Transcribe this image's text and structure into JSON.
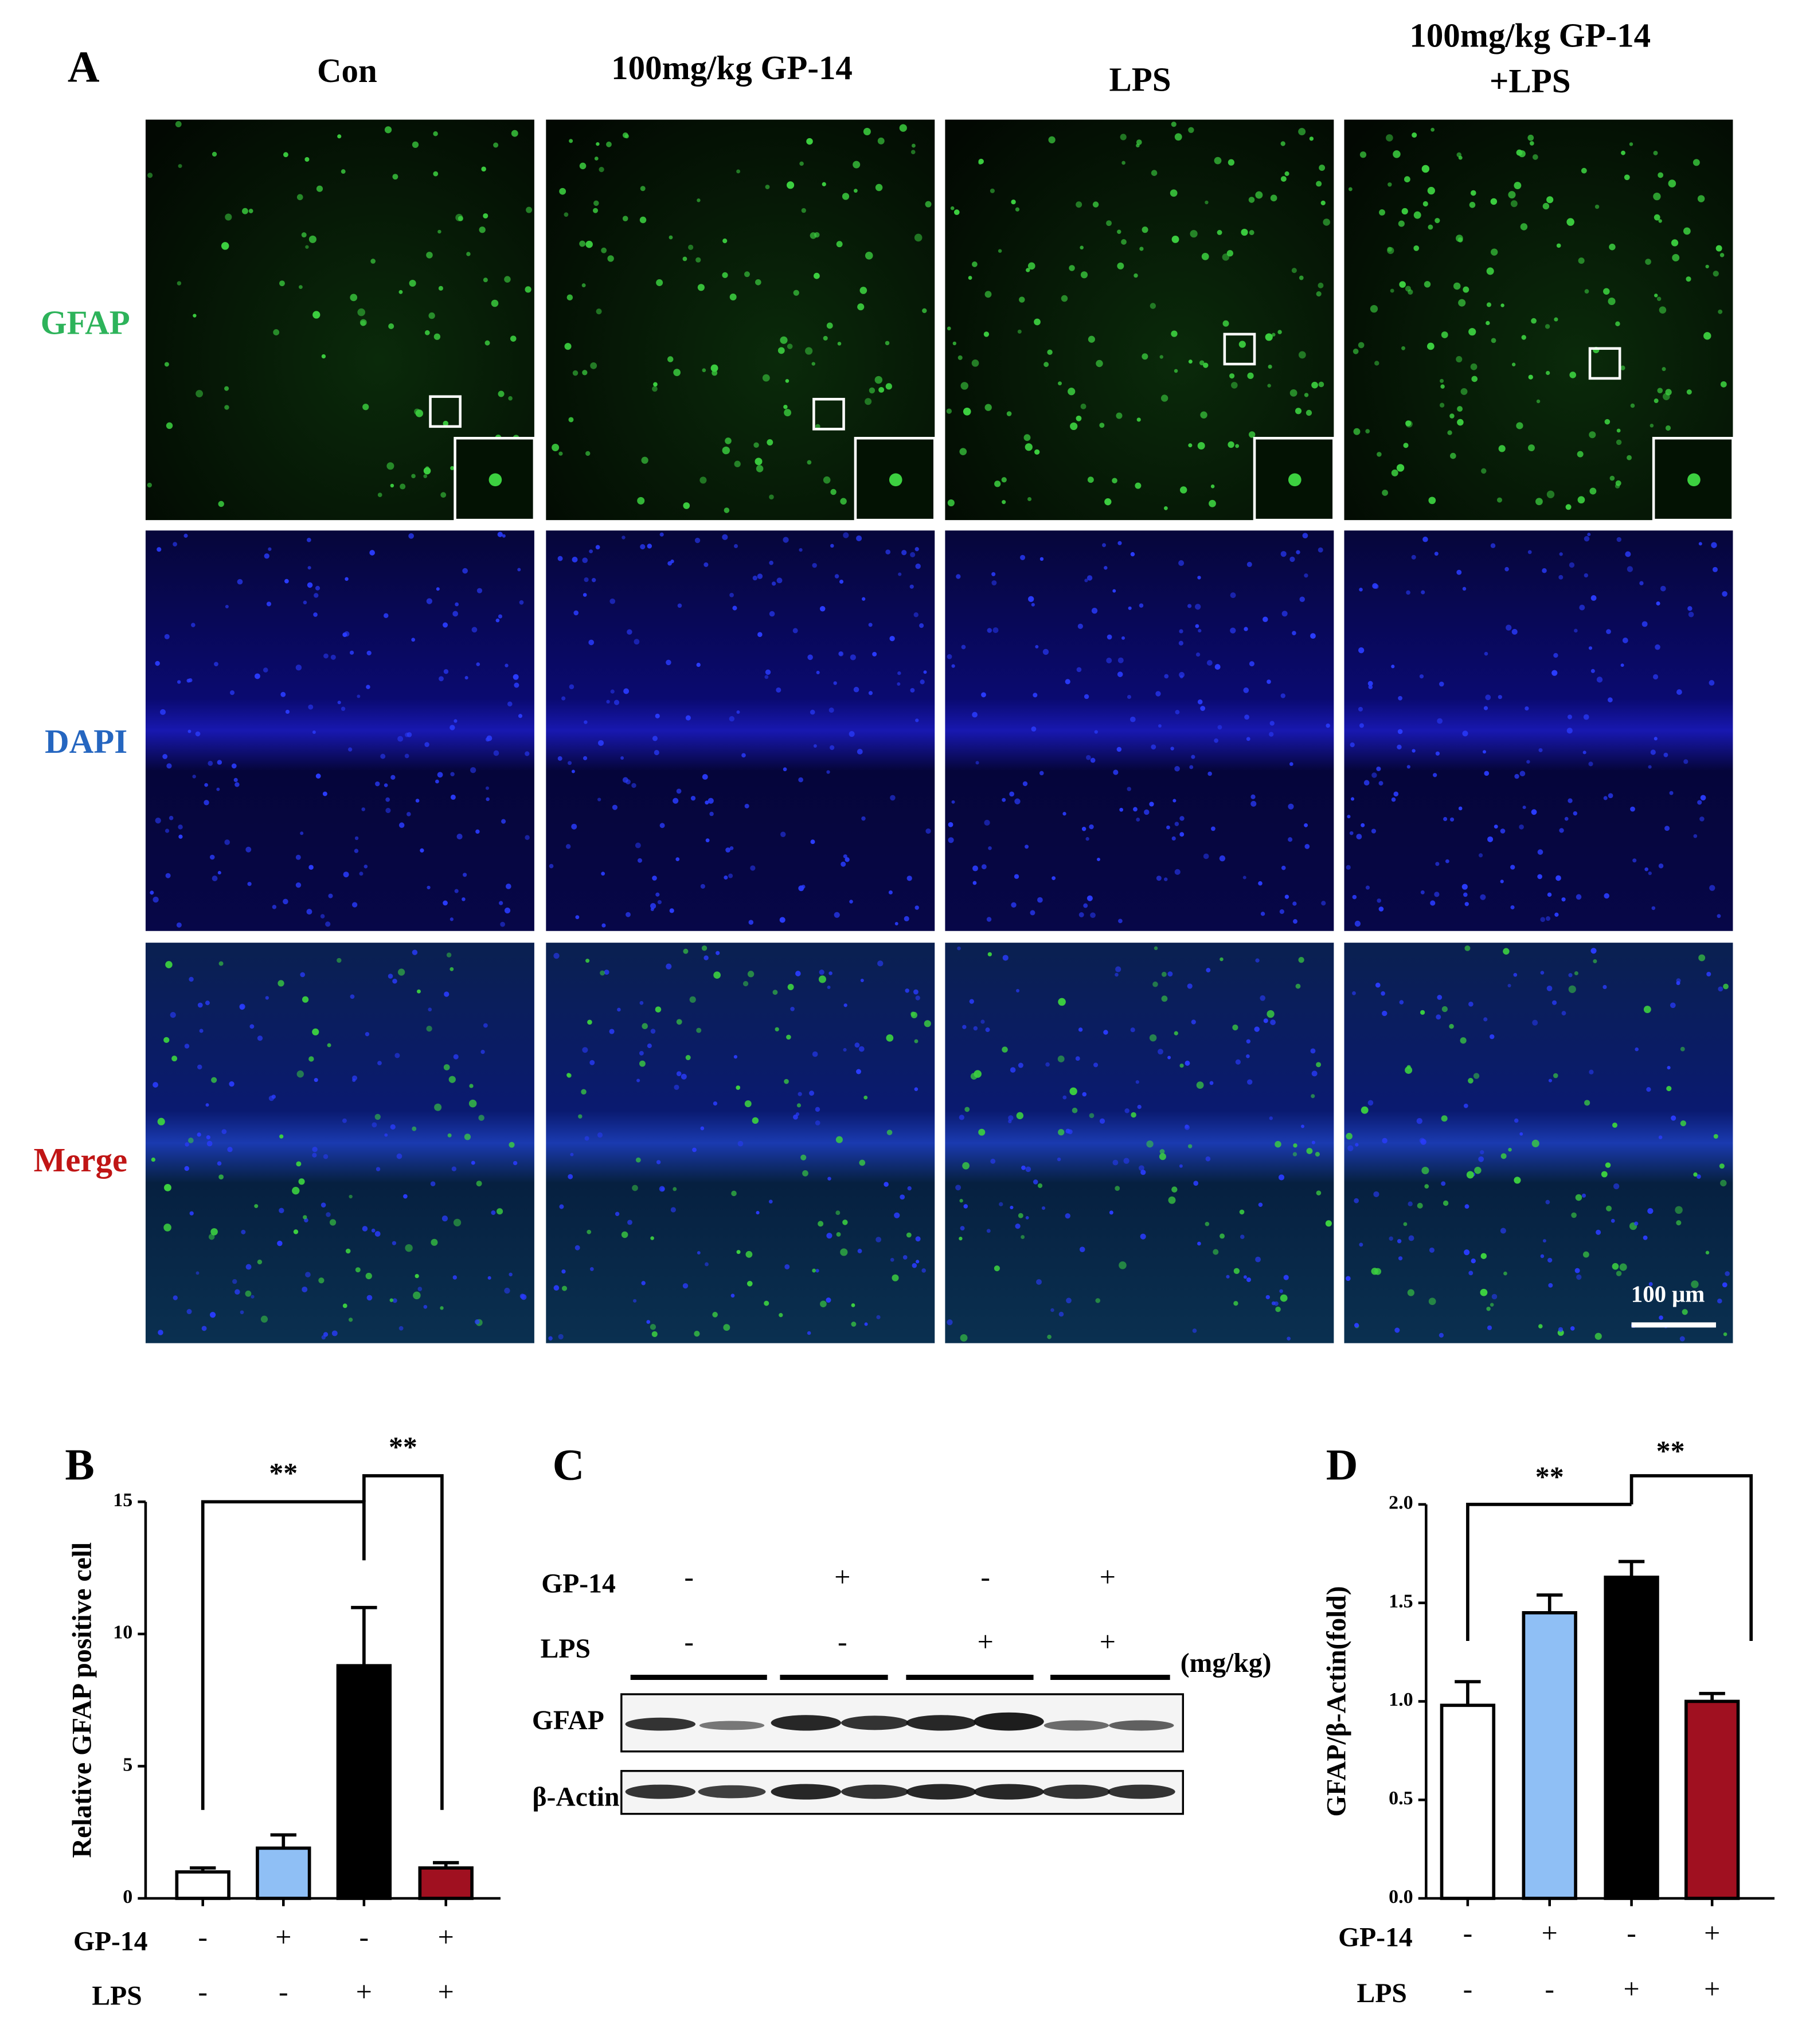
{
  "panel_a": {
    "label": "A",
    "columns": [
      "Con",
      "100mg/kg GP-14",
      "LPS",
      [
        "100mg/kg GP-14",
        "+LPS"
      ]
    ],
    "rows": [
      "GFAP",
      "DAPI",
      "Merge"
    ],
    "scale_bar": "100 μm"
  },
  "panel_c": {
    "label": "C",
    "conditions": [
      {
        "name": "GP-14",
        "values": [
          "-",
          "+",
          "-",
          "+"
        ]
      },
      {
        "name": "LPS",
        "values": [
          "-",
          "-",
          "+",
          "+"
        ]
      }
    ],
    "unit": "(mg/kg)",
    "bands": [
      "GFAP",
      "β-Actin"
    ]
  },
  "chart_data": [
    {
      "type": "bar",
      "panel_label": "B",
      "y_label": "Relative GFAP positive cell",
      "values": [
        1.0,
        1.9,
        8.8,
        1.15
      ],
      "errors": [
        0.15,
        0.5,
        2.2,
        0.2
      ],
      "colors": [
        "#ffffff",
        "#8fbff5",
        "#000000",
        "#a01020"
      ],
      "conditions": [
        {
          "name": "GP-14",
          "values": [
            "-",
            "+",
            "-",
            "+"
          ]
        },
        {
          "name": "LPS",
          "values": [
            "-",
            "-",
            "+",
            "+"
          ]
        }
      ],
      "significance": [
        "**",
        "**"
      ],
      "ylim": [
        0,
        15
      ],
      "yticks": [
        0,
        5,
        10,
        15
      ]
    },
    {
      "type": "bar",
      "panel_label": "D",
      "y_label": "GFAP/β-Actin(fold)",
      "values": [
        0.98,
        1.45,
        1.63,
        1.0
      ],
      "errors": [
        0.12,
        0.09,
        0.08,
        0.04
      ],
      "colors": [
        "#ffffff",
        "#8fbff5",
        "#000000",
        "#a01020"
      ],
      "conditions": [
        {
          "name": "GP-14",
          "values": [
            "-",
            "+",
            "-",
            "+"
          ]
        },
        {
          "name": "LPS",
          "values": [
            "-",
            "-",
            "+",
            "+"
          ]
        }
      ],
      "significance": [
        "**",
        "**"
      ],
      "ylim": [
        0,
        2.0
      ],
      "yticks": [
        {
          "value": 0,
          "label": "0.0"
        },
        {
          "value": 0.5,
          "label": "0.5"
        },
        {
          "value": 1.0,
          "label": "1.0"
        },
        {
          "value": 1.5,
          "label": "1.5"
        },
        {
          "value": 2.0,
          "label": "2.0"
        }
      ]
    }
  ]
}
